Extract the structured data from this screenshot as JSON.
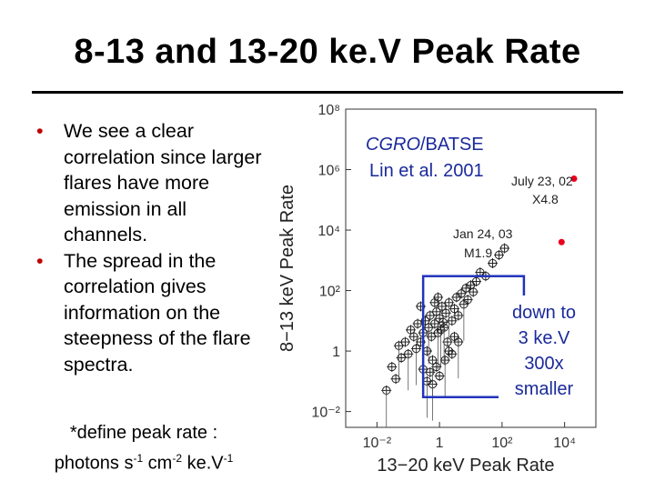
{
  "slide": {
    "title": "8-13 and 13-20 ke.V Peak Rate",
    "bullets": [
      "We see a clear correlation since larger flares have more emission in all channels.",
      "The spread in the correlation gives information on the steepness of the flare spectra."
    ],
    "footnote": {
      "line1": "*define peak rate :",
      "photons": "photons s",
      "sup1": "-1",
      "cm": " cm",
      "sup2": "-2",
      "kev": " ke.V",
      "sup3": "-1"
    }
  },
  "chart_data": {
    "type": "scatter",
    "xlabel": "13−20 keV Peak Rate",
    "ylabel": "8−13 keV Peak Rate",
    "x_scale": "log",
    "y_scale": "log",
    "xlim": [
      0.001,
      100000
    ],
    "ylim": [
      0.003,
      100000000
    ],
    "x_ticks": [
      "10⁻²",
      "1",
      "10²",
      "10⁴"
    ],
    "y_ticks": [
      "10⁻²",
      "1",
      "10²",
      "10⁴",
      "10⁶",
      "10⁸"
    ],
    "x_tick_values": [
      0.01,
      1,
      100,
      10000
    ],
    "y_tick_values": [
      0.01,
      1,
      100,
      10000,
      1000000,
      100000000
    ],
    "grid": false,
    "inset_text": [
      "CGRO/BATSE",
      "Lin et al. 2001"
    ],
    "annotations": [
      {
        "text": "July 23, 02",
        "value": "X4.8"
      },
      {
        "text": "Jan 24, 03",
        "value": "M1.9"
      }
    ],
    "highlight_points": [
      {
        "x": 20000,
        "y": 500000,
        "color": "#e8001c"
      },
      {
        "x": 8000,
        "y": 4000,
        "color": "#e8001c"
      }
    ],
    "box": {
      "x_range": [
        0.3,
        500
      ],
      "y_range": [
        0.03,
        300
      ],
      "color": "#2233bb",
      "label": "down to 3 ke.V 300x smaller"
    },
    "series": [
      {
        "marker": "circle-cross",
        "points": [
          [
            0.02,
            0.05
          ],
          [
            0.03,
            0.3
          ],
          [
            0.04,
            0.12
          ],
          [
            0.05,
            1.5
          ],
          [
            0.06,
            0.6
          ],
          [
            0.08,
            2
          ],
          [
            0.1,
            0.8
          ],
          [
            0.12,
            5
          ],
          [
            0.15,
            3
          ],
          [
            0.18,
            1.2
          ],
          [
            0.2,
            8
          ],
          [
            0.25,
            2
          ],
          [
            0.3,
            4
          ],
          [
            0.35,
            10
          ],
          [
            0.4,
            1
          ],
          [
            0.45,
            6
          ],
          [
            0.5,
            15
          ],
          [
            0.55,
            3
          ],
          [
            0.6,
            0.5
          ],
          [
            0.7,
            8
          ],
          [
            0.8,
            20
          ],
          [
            0.9,
            4
          ],
          [
            1,
            12
          ],
          [
            1.2,
            30
          ],
          [
            1.4,
            6
          ],
          [
            1.6,
            18
          ],
          [
            1.8,
            2
          ],
          [
            2,
            40
          ],
          [
            2.5,
            10
          ],
          [
            3,
            25
          ],
          [
            3.5,
            60
          ],
          [
            4,
            15
          ],
          [
            5,
            80
          ],
          [
            6,
            35
          ],
          [
            7,
            120
          ],
          [
            8,
            50
          ],
          [
            10,
            150
          ],
          [
            12,
            90
          ],
          [
            15,
            200
          ],
          [
            20,
            400
          ],
          [
            30,
            300
          ],
          [
            50,
            800
          ],
          [
            80,
            1500
          ],
          [
            120,
            2500
          ],
          [
            0.5,
            0.2
          ],
          [
            0.6,
            0.08
          ],
          [
            0.8,
            0.3
          ],
          [
            1,
            0.15
          ],
          [
            1.5,
            0.5
          ],
          [
            2,
            1
          ],
          [
            0.3,
            0.25
          ],
          [
            0.4,
            0.1
          ],
          [
            2.5,
            0.8
          ],
          [
            3,
            3
          ],
          [
            4,
            2
          ],
          [
            0.7,
            40
          ],
          [
            0.9,
            60
          ],
          [
            1.1,
            5
          ],
          [
            1.3,
            9
          ],
          [
            0.25,
            30
          ]
        ]
      }
    ]
  },
  "chart_text": {
    "title_line1": "CGRO/BATSE",
    "title_line2": "Lin et al. 2001",
    "ann1_date": "July 23, 02",
    "ann1_class": "X4.8",
    "ann2_date": "Jan 24, 03",
    "ann2_class": "M1.9",
    "box_label": [
      "down to",
      "3 ke.V",
      "300x",
      "smaller"
    ]
  }
}
